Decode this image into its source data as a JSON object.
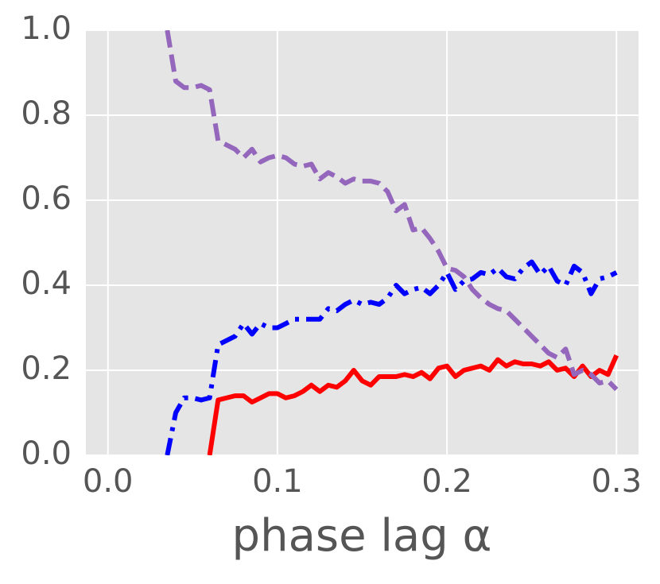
{
  "chart_data": {
    "type": "line",
    "xlabel": "phase lag α",
    "x": [
      0.035,
      0.04,
      0.045,
      0.05,
      0.055,
      0.06,
      0.065,
      0.07,
      0.075,
      0.08,
      0.085,
      0.09,
      0.095,
      0.1,
      0.105,
      0.11,
      0.115,
      0.12,
      0.125,
      0.13,
      0.135,
      0.14,
      0.145,
      0.15,
      0.155,
      0.16,
      0.165,
      0.17,
      0.175,
      0.18,
      0.185,
      0.19,
      0.195,
      0.2,
      0.205,
      0.21,
      0.215,
      0.22,
      0.225,
      0.23,
      0.235,
      0.24,
      0.245,
      0.25,
      0.255,
      0.26,
      0.265,
      0.27,
      0.275,
      0.28,
      0.285,
      0.29,
      0.295,
      0.3
    ],
    "series": [
      {
        "color": "#0000ff",
        "dash": "dashdot",
        "values": [
          0,
          0.1,
          0.135,
          0.135,
          0.13,
          0.135,
          0.26,
          0.27,
          0.28,
          0.31,
          0.285,
          0.31,
          0.3,
          0.3,
          0.31,
          0.32,
          0.32,
          0.32,
          0.32,
          0.345,
          0.34,
          0.355,
          0.365,
          0.355,
          0.36,
          0.355,
          0.37,
          0.4,
          0.38,
          0.39,
          0.395,
          0.38,
          0.4,
          0.43,
          0.39,
          0.41,
          0.415,
          0.43,
          0.425,
          0.44,
          0.42,
          0.415,
          0.44,
          0.455,
          0.425,
          0.445,
          0.41,
          0.4,
          0.445,
          0.43,
          0.38,
          0.415,
          0.42,
          0.43
        ]
      },
      {
        "color": "#ff0000",
        "dash": "solid",
        "values": [
          null,
          null,
          null,
          null,
          null,
          0,
          0.13,
          0.135,
          0.14,
          0.14,
          0.125,
          0.135,
          0.145,
          0.145,
          0.135,
          0.14,
          0.15,
          0.165,
          0.15,
          0.165,
          0.16,
          0.175,
          0.2,
          0.175,
          0.165,
          0.185,
          0.185,
          0.185,
          0.19,
          0.185,
          0.195,
          0.18,
          0.205,
          0.21,
          0.185,
          0.2,
          0.205,
          0.21,
          0.2,
          0.225,
          0.21,
          0.22,
          0.215,
          0.215,
          0.21,
          0.22,
          0.2,
          0.205,
          0.185,
          0.21,
          0.185,
          0.2,
          0.19,
          0.235
        ]
      },
      {
        "color": "#9467bd",
        "dash": "dashed",
        "values": [
          1.0,
          0.88,
          0.865,
          0.865,
          0.87,
          0.86,
          0.74,
          0.73,
          0.72,
          0.7,
          0.72,
          0.69,
          0.7,
          0.705,
          0.7,
          0.685,
          0.68,
          0.685,
          0.65,
          0.665,
          0.655,
          0.64,
          0.65,
          0.645,
          0.645,
          0.64,
          0.62,
          0.575,
          0.59,
          0.53,
          0.535,
          0.51,
          0.48,
          0.44,
          0.435,
          0.42,
          0.39,
          0.37,
          0.355,
          0.345,
          0.34,
          0.32,
          0.3,
          0.28,
          0.26,
          0.24,
          0.23,
          0.25,
          0.19,
          0.2,
          0.19,
          0.17,
          0.175,
          0.155
        ]
      }
    ],
    "xlim": [
      -0.013,
      0.313
    ],
    "ylim": [
      0,
      1
    ],
    "xticks": [
      {
        "value": 0,
        "label": "0.0"
      },
      0.1,
      0.2,
      0.3
    ],
    "yticks": [
      {
        "value": 0,
        "label": "0.0"
      },
      0.2,
      0.4,
      0.6,
      0.8,
      {
        "value": 1,
        "label": "1.0"
      }
    ],
    "grid": true
  }
}
